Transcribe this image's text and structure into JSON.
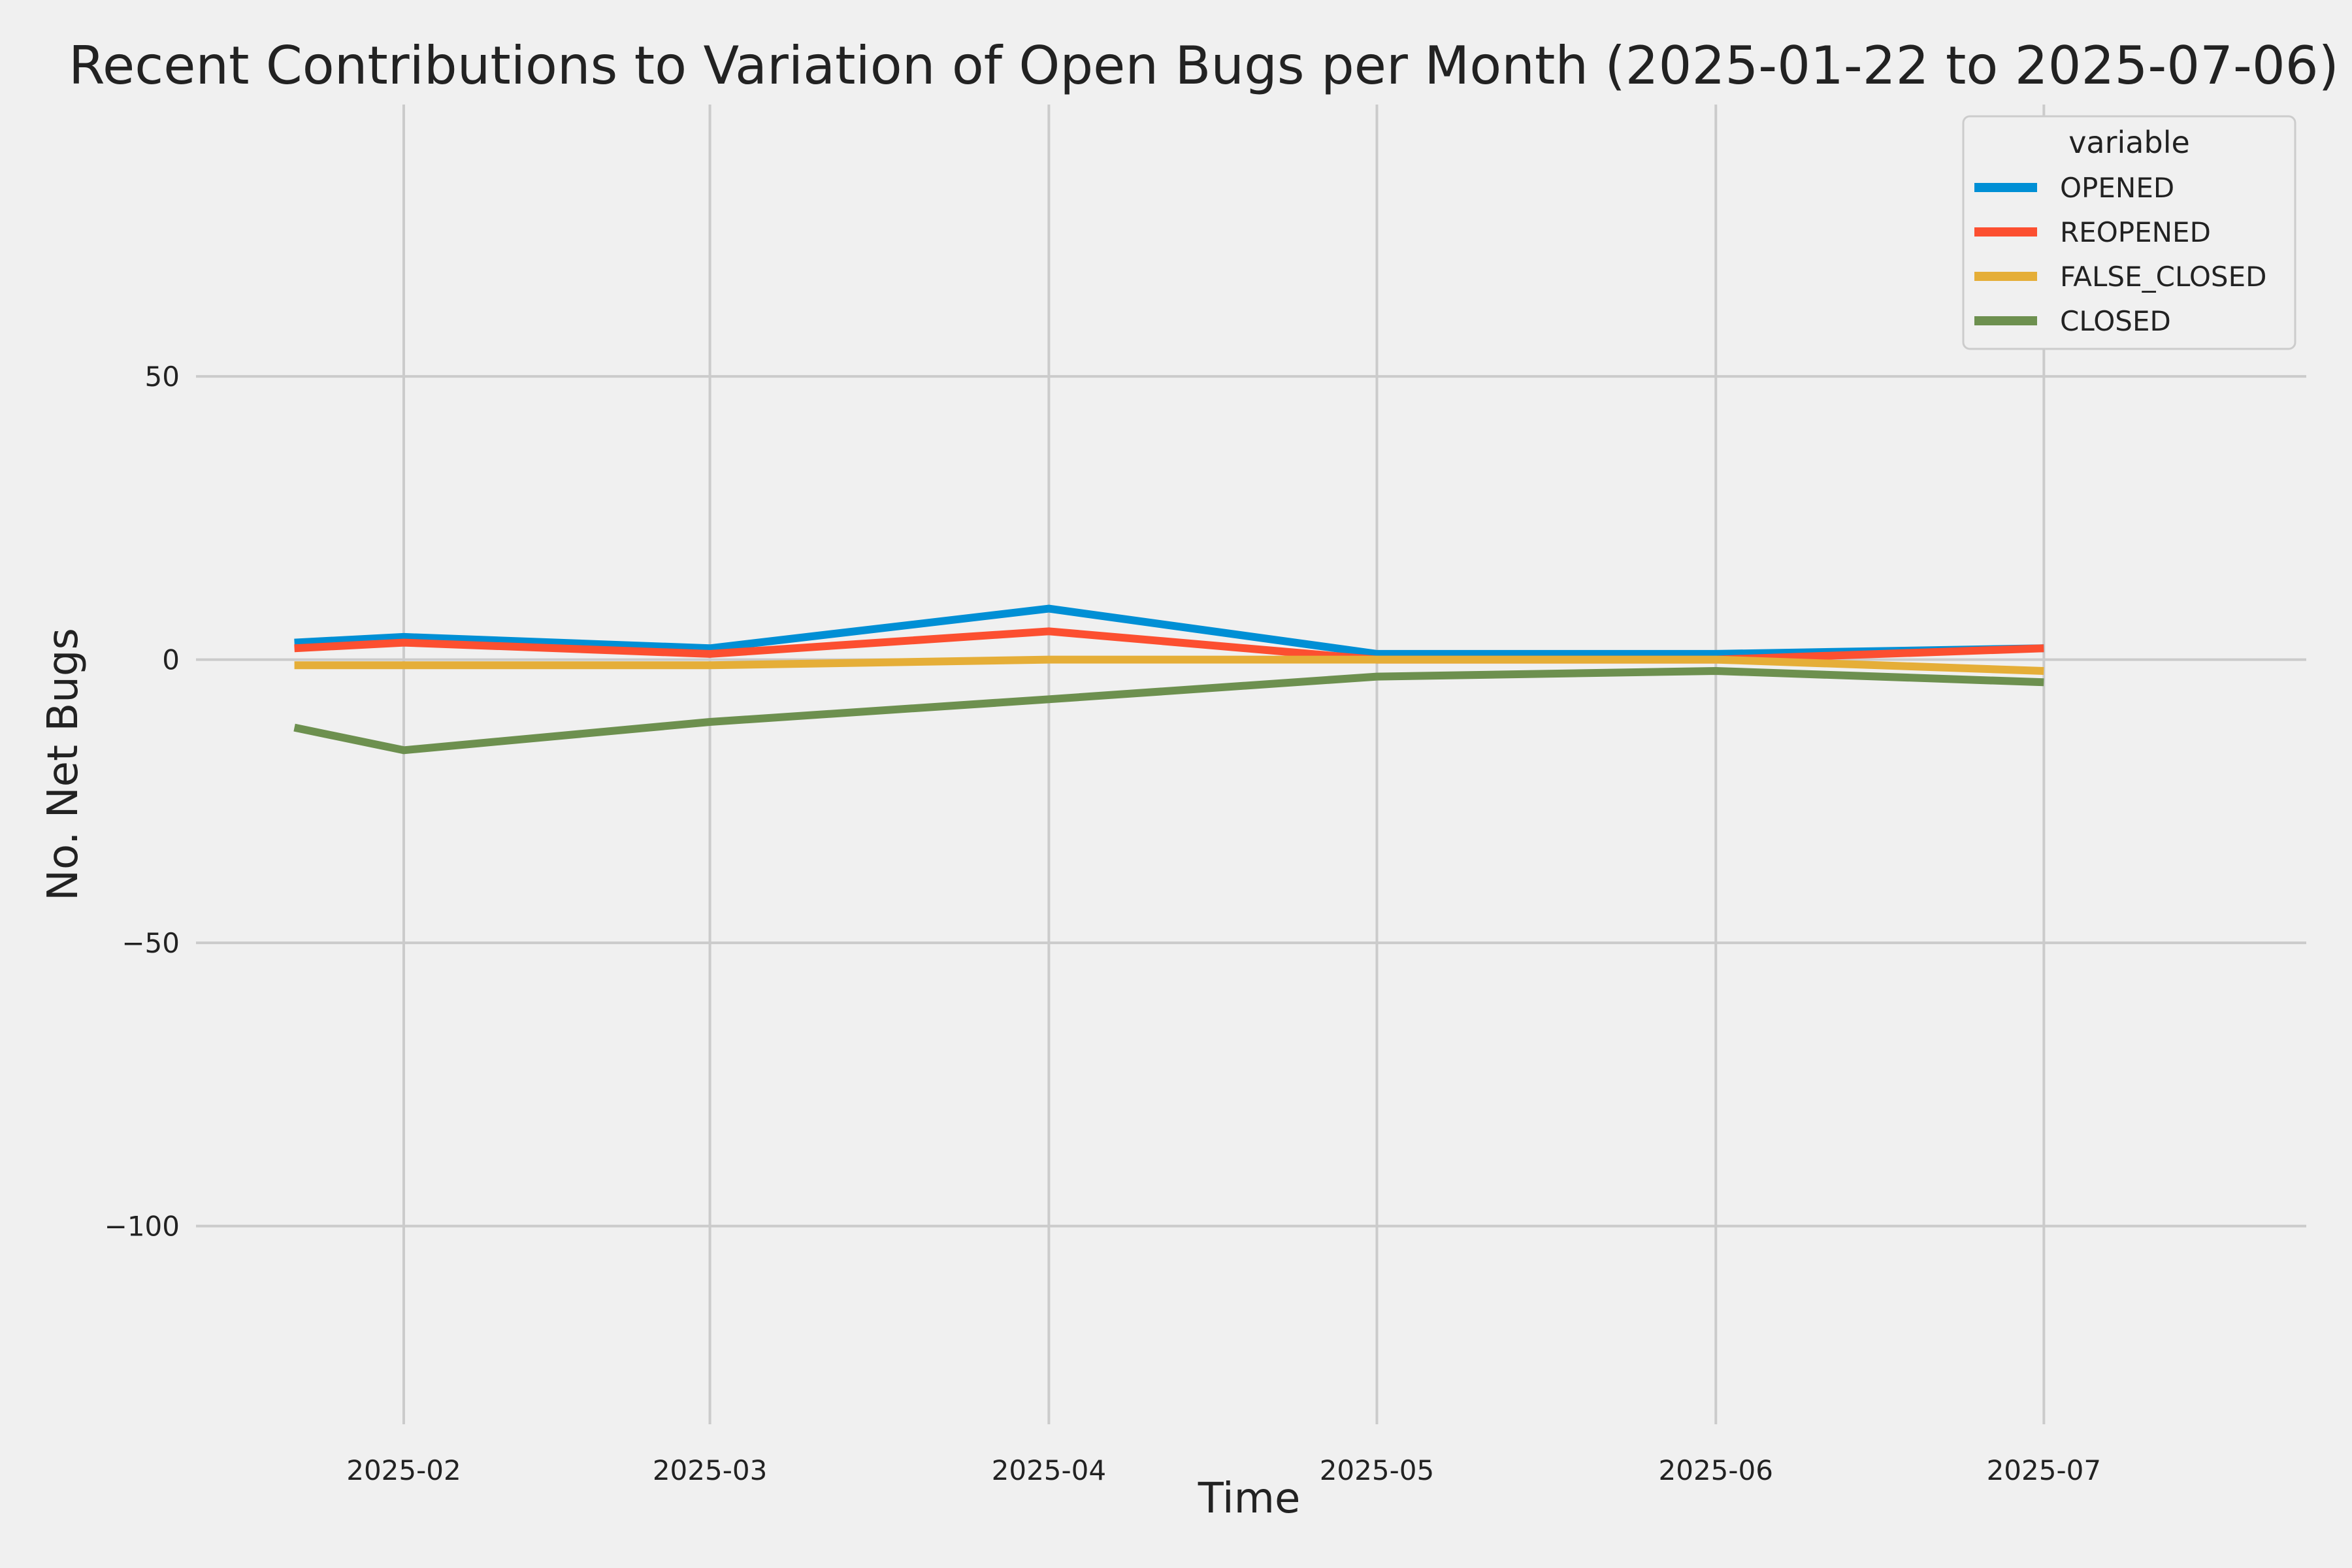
{
  "chart_data": {
    "type": "line",
    "title": "Recent Contributions to Variation of Open Bugs per Month (2025-01-22 to 2025-07-06)",
    "xlabel": "Time",
    "ylabel": "No. Net Bugs",
    "x": [
      "2025-01-22",
      "2025-02-01",
      "2025-03-01",
      "2025-04-01",
      "2025-05-01",
      "2025-06-01",
      "2025-07-01"
    ],
    "x_ticks": [
      "2025-02",
      "2025-03",
      "2025-04",
      "2025-05",
      "2025-06",
      "2025-07"
    ],
    "y_ticks": [
      50,
      0,
      -50,
      -100
    ],
    "y_tick_labels": [
      "50",
      "0",
      "−50",
      "−100"
    ],
    "ylim": [
      -135,
      98
    ],
    "grid": true,
    "legend": {
      "title": "variable",
      "position": "top-right"
    },
    "series": [
      {
        "name": "OPENED",
        "color": "#008fd5",
        "values": [
          3,
          4,
          2,
          9,
          1,
          1,
          2
        ]
      },
      {
        "name": "REOPENED",
        "color": "#fc4f30",
        "values": [
          2,
          3,
          1,
          5,
          0,
          0,
          2
        ]
      },
      {
        "name": "FALSE_CLOSED",
        "color": "#e5ae38",
        "values": [
          -1,
          -1,
          -1,
          0,
          0,
          0,
          -2
        ]
      },
      {
        "name": "CLOSED",
        "color": "#6d904f",
        "values": [
          -12,
          -16,
          -11,
          -7,
          -3,
          -2,
          -4
        ]
      }
    ]
  }
}
